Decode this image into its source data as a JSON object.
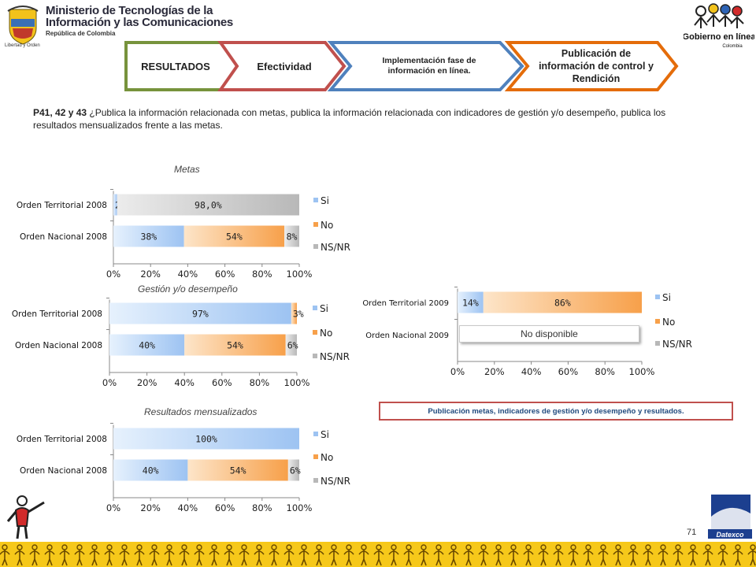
{
  "header": {
    "ministry_line1": "Ministerio de Tecnologías de la",
    "ministry_line2": "Información y las Comunicaciones",
    "ministry_line3": "República de Colombia",
    "motto": "Libertad y Orden",
    "gov_logo_line1": "Gobierno en línea",
    "gov_logo_line2": "Colombia"
  },
  "steps": [
    {
      "label": "RESULTADOS",
      "color": "#77933c"
    },
    {
      "label": "Efectividad",
      "color": "#c0504d"
    },
    {
      "label": "Implementación fase de información en línea.",
      "color": "#4f81bd"
    },
    {
      "label": "Publicación de información de control y Rendición",
      "color": "#e46c0a"
    }
  ],
  "question": {
    "code": "P41, 42 y 43",
    "text": " ¿Publica la información relacionada con metas, publica la información relacionada con indicadores de gestión y/o desempeño, publica los resultados mensualizados frente a las metas."
  },
  "colors": {
    "si": "#9dc3f2",
    "no": "#f7a04a",
    "nsnr": "#b8b8b8"
  },
  "chart_data": [
    {
      "type": "bar",
      "orientation": "horizontal",
      "stacked": true,
      "title": "Metas",
      "categories": [
        "Orden Territorial 2008",
        "Orden Nacional 2008"
      ],
      "series": [
        {
          "name": "Si",
          "values": [
            2,
            38
          ],
          "labels": [
            "2%",
            "38%"
          ]
        },
        {
          "name": "No",
          "values": [
            0,
            54
          ],
          "labels": [
            "",
            "54%"
          ]
        },
        {
          "name": "NS/NR",
          "values": [
            98,
            8
          ],
          "labels": [
            "98,0%",
            "8%"
          ]
        }
      ],
      "xticks": [
        "0%",
        "20%",
        "40%",
        "60%",
        "80%",
        "100%"
      ],
      "xlim": [
        0,
        100
      ],
      "legend": "right"
    },
    {
      "type": "bar",
      "orientation": "horizontal",
      "stacked": true,
      "title": "Gestión y/o desempeño",
      "categories": [
        "Orden Territorial 2008",
        "Orden Nacional 2008"
      ],
      "series": [
        {
          "name": "Si",
          "values": [
            97,
            40
          ],
          "labels": [
            "97%",
            "40%"
          ]
        },
        {
          "name": "No",
          "values": [
            3,
            54
          ],
          "labels": [
            "3%",
            "54%"
          ]
        },
        {
          "name": "NS/NR",
          "values": [
            0,
            6
          ],
          "labels": [
            "",
            "6%"
          ]
        }
      ],
      "xticks": [
        "0%",
        "20%",
        "40%",
        "60%",
        "80%",
        "100%"
      ],
      "xlim": [
        0,
        100
      ],
      "legend": "right"
    },
    {
      "type": "bar",
      "orientation": "horizontal",
      "stacked": true,
      "title": "",
      "categories": [
        "Orden Territorial 2009",
        "Orden Nacional 2009"
      ],
      "series": [
        {
          "name": "Si",
          "values": [
            14,
            0
          ],
          "labels": [
            "14%",
            ""
          ]
        },
        {
          "name": "No",
          "values": [
            86,
            0
          ],
          "labels": [
            "86%",
            ""
          ]
        },
        {
          "name": "NS/NR",
          "values": [
            0,
            0
          ],
          "labels": [
            "",
            ""
          ]
        }
      ],
      "annotation": "No disponible",
      "xticks": [
        "0%",
        "20%",
        "40%",
        "60%",
        "80%",
        "100%"
      ],
      "xlim": [
        0,
        100
      ],
      "legend": "right"
    },
    {
      "type": "bar",
      "orientation": "horizontal",
      "stacked": true,
      "title": "Resultados mensualizados",
      "categories": [
        "Orden Territorial 2008",
        "Orden Nacional 2008"
      ],
      "series": [
        {
          "name": "Si",
          "values": [
            100,
            40
          ],
          "labels": [
            "100%",
            "40%"
          ]
        },
        {
          "name": "No",
          "values": [
            0,
            54
          ],
          "labels": [
            "",
            "54%"
          ]
        },
        {
          "name": "NS/NR",
          "values": [
            0,
            6
          ],
          "labels": [
            "",
            "6%"
          ]
        }
      ],
      "xticks": [
        "0%",
        "20%",
        "40%",
        "60%",
        "80%",
        "100%"
      ],
      "xlim": [
        0,
        100
      ],
      "legend": "right"
    }
  ],
  "notice": "Publicación metas, indicadores de gestión y/o desempeño y resultados.",
  "page_number": "71",
  "footer_logo": "Datexco"
}
